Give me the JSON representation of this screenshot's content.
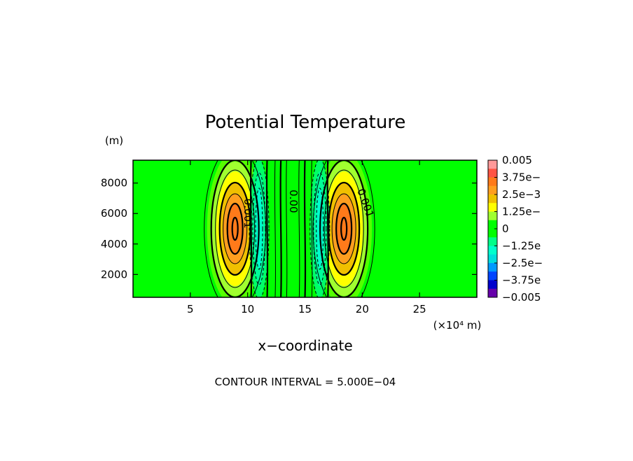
{
  "chart_data": {
    "type": "contour",
    "title": "Potential Temperature",
    "xlabel": "x−coordinate",
    "x_unit": "(×10⁴ m)",
    "y_unit": "(m)",
    "footer": "CONTOUR INTERVAL = 5.000E−04",
    "xlim": [
      0,
      30
    ],
    "ylim": [
      500,
      9500
    ],
    "x_ticks": [
      {
        "value": 5,
        "label": "5"
      },
      {
        "value": 10,
        "label": "10"
      },
      {
        "value": 15,
        "label": "15"
      },
      {
        "value": 20,
        "label": "20"
      },
      {
        "value": 25,
        "label": "25"
      }
    ],
    "y_ticks": [
      {
        "value": 2000,
        "label": "2000"
      },
      {
        "value": 4000,
        "label": "4000"
      },
      {
        "value": 6000,
        "label": "6000"
      },
      {
        "value": 8000,
        "label": "8000"
      }
    ],
    "contour_interval": 0.0005,
    "colorbar": {
      "labels": [
        "0.005",
        "3.75e−",
        "2.5e−3",
        "1.25e−",
        "0",
        "−1.25e",
        "−2.5e−",
        "−3.75e",
        "−0.005"
      ],
      "colors": [
        "#ff9999",
        "#ff5544",
        "#ff7a1a",
        "#ff9e1f",
        "#f0c000",
        "#ffff00",
        "#a0ff30",
        "#00ff00",
        "#00ff00",
        "#00ff88",
        "#00ffcc",
        "#00dddd",
        "#0099ff",
        "#0044ff",
        "#0000cc",
        "#6600aa"
      ]
    },
    "features": [
      {
        "kind": "warm-maximum",
        "x": 8.9,
        "y": 5000,
        "value": 0.003
      },
      {
        "kind": "warm-maximum",
        "x": 18.4,
        "y": 5000,
        "value": 0.003
      },
      {
        "kind": "cool-minimum",
        "x": 11.0,
        "y": 5000,
        "value": -0.001
      },
      {
        "kind": "cool-minimum",
        "x": 16.3,
        "y": 5000,
        "value": -0.001
      }
    ],
    "contour_labels": [
      {
        "text": "0.001",
        "x": 9.7,
        "y": 6000,
        "rotate": 90
      },
      {
        "text": "0.00",
        "x": 13.7,
        "y": 6800,
        "rotate": 90
      },
      {
        "text": "0.001",
        "x": 20.0,
        "y": 6600,
        "rotate": 70
      }
    ]
  }
}
